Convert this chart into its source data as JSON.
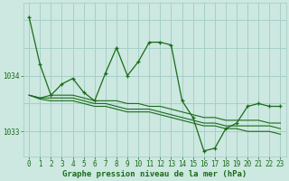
{
  "title": "Graphe pression niveau de la mer (hPa)",
  "xlabel": "Graphe pression niveau de la mer (hPa)",
  "background_color": "#cce8e0",
  "grid_color": "#a0ccc4",
  "line_color": "#1a6b1a",
  "hours": [
    0,
    1,
    2,
    3,
    4,
    5,
    6,
    7,
    8,
    9,
    10,
    11,
    12,
    13,
    14,
    15,
    16,
    17,
    18,
    19,
    20,
    21,
    22,
    23
  ],
  "jagged_values": [
    1035.05,
    1034.2,
    1033.65,
    1033.85,
    1033.95,
    1033.7,
    1033.55,
    1034.05,
    1034.5,
    1034.0,
    1034.25,
    1034.6,
    1034.6,
    1034.55,
    1033.55,
    1033.25,
    1032.65,
    1032.7,
    1033.05,
    1033.15,
    1033.45,
    1033.5,
    1033.45,
    1033.45
  ],
  "mid_values": [
    1033.65,
    1033.6,
    1033.6,
    1033.6,
    1033.6,
    1033.55,
    1033.5,
    1033.5,
    1033.45,
    1033.4,
    1033.4,
    1033.4,
    1033.35,
    1033.3,
    1033.25,
    1033.2,
    1033.15,
    1033.15,
    1033.1,
    1033.1,
    1033.1,
    1033.1,
    1033.1,
    1033.05
  ],
  "upper_values": [
    1033.65,
    1033.6,
    1033.65,
    1033.65,
    1033.65,
    1033.6,
    1033.55,
    1033.55,
    1033.55,
    1033.5,
    1033.5,
    1033.45,
    1033.45,
    1033.4,
    1033.35,
    1033.3,
    1033.25,
    1033.25,
    1033.2,
    1033.2,
    1033.2,
    1033.2,
    1033.15,
    1033.15
  ],
  "lower_values": [
    1033.65,
    1033.58,
    1033.55,
    1033.55,
    1033.55,
    1033.5,
    1033.45,
    1033.45,
    1033.4,
    1033.35,
    1033.35,
    1033.35,
    1033.3,
    1033.25,
    1033.2,
    1033.15,
    1033.1,
    1033.1,
    1033.05,
    1033.05,
    1033.0,
    1033.0,
    1033.0,
    1032.95
  ],
  "yticks": [
    1033,
    1034
  ],
  "ylim": [
    1032.55,
    1035.3
  ],
  "xlim": [
    -0.5,
    23.5
  ],
  "font_color": "#1a6b1a",
  "tick_fontsize": 5.5,
  "label_fontsize": 6.5
}
